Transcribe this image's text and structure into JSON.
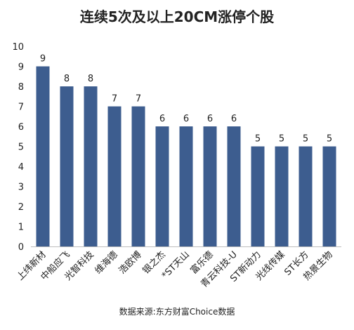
{
  "title": "连续5次及以上20CM涨停个股",
  "source": "数据来源:东方财富Choice数据",
  "chart_data": {
    "type": "bar",
    "title": "连续5次及以上20CM涨停个股",
    "xlabel": "",
    "ylabel": "",
    "ylim": [
      0,
      10
    ],
    "yticks": [
      0,
      1,
      2,
      3,
      4,
      5,
      6,
      7,
      8,
      9,
      10
    ],
    "grid": false,
    "legend": "none",
    "bar_color": "#3D5D8F",
    "categories": [
      "上纬新材",
      "中船应飞",
      "光智科技",
      "维海德",
      "浩欧博",
      "银之杰",
      "*ST天山",
      "富乐德",
      "青云科技-U",
      "ST新动力",
      "光线传媒",
      "ST长方",
      "热景生物"
    ],
    "values": [
      9,
      8,
      8,
      7,
      7,
      6,
      6,
      6,
      6,
      5,
      5,
      5,
      5
    ]
  }
}
